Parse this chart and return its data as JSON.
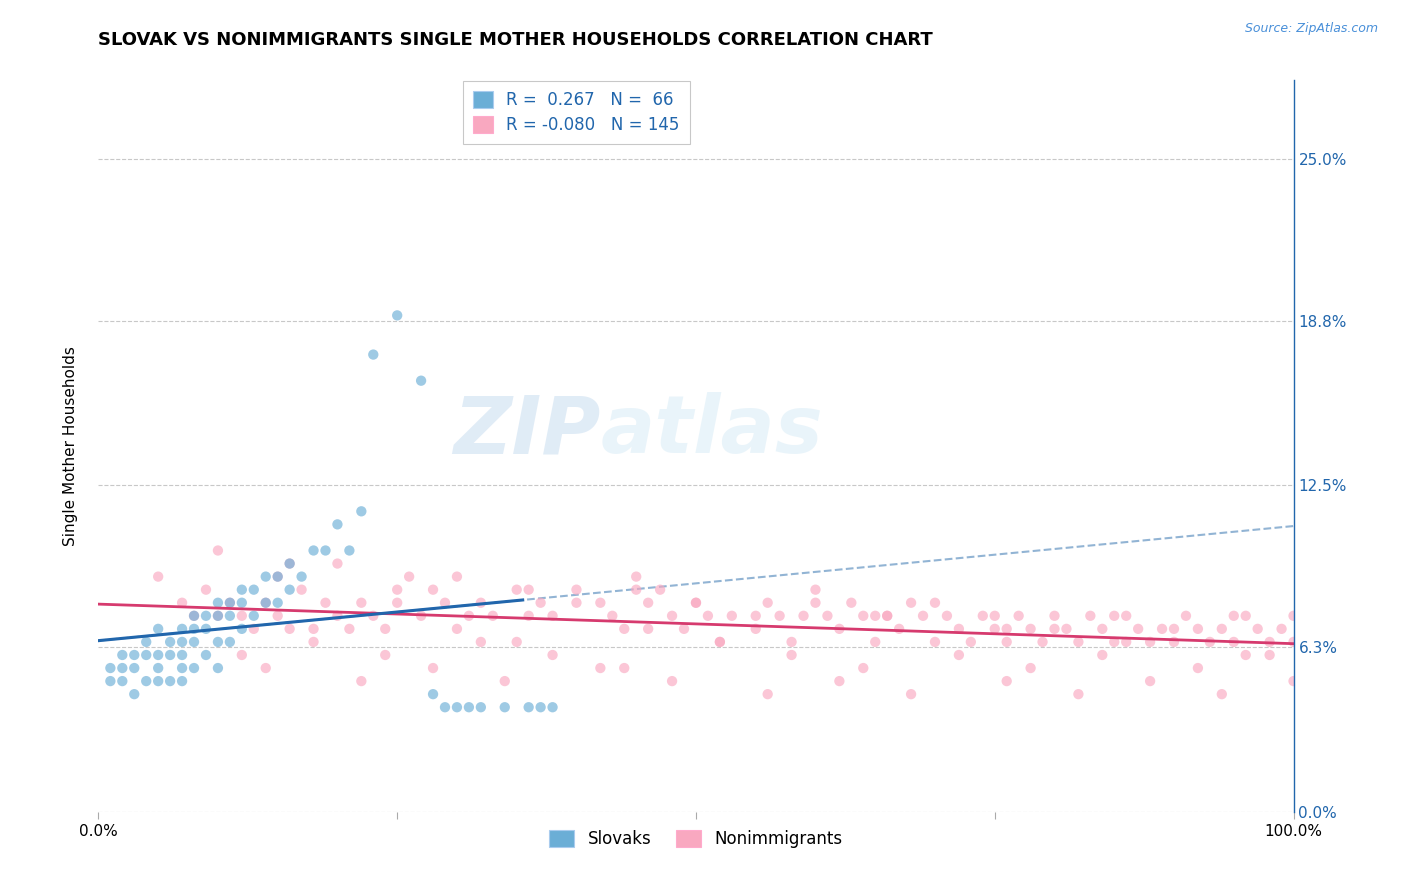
{
  "title": "SLOVAK VS NONIMMIGRANTS SINGLE MOTHER HOUSEHOLDS CORRELATION CHART",
  "source": "Source: ZipAtlas.com",
  "ylabel": "Single Mother Households",
  "xlim": [
    0.0,
    1.0
  ],
  "ylim": [
    0.0,
    0.28
  ],
  "yticks": [
    0.0,
    0.063,
    0.125,
    0.188,
    0.25
  ],
  "ytick_labels_right": [
    "0.0%",
    "6.3%",
    "12.5%",
    "18.8%",
    "25.0%"
  ],
  "xtick_labels": [
    "0.0%",
    "100.0%"
  ],
  "legend_line1": "R =  0.267   N =  66",
  "legend_line2": "R = -0.080   N = 145",
  "blue_scatter_color": "#6baed6",
  "pink_scatter_color": "#f9a8c0",
  "blue_line_color": "#2166ac",
  "pink_line_color": "#d63a6e",
  "dash_line_color": "#92b4d4",
  "grid_color": "#c8c8c8",
  "title_fontsize": 13,
  "label_fontsize": 11,
  "tick_fontsize": 11,
  "watermark_zip": "ZIP",
  "watermark_atlas": "atlas",
  "scatter_size": 55,
  "scatter_alpha": 0.65,
  "slovak_x": [
    0.01,
    0.01,
    0.02,
    0.02,
    0.02,
    0.03,
    0.03,
    0.03,
    0.04,
    0.04,
    0.04,
    0.05,
    0.05,
    0.05,
    0.05,
    0.06,
    0.06,
    0.06,
    0.07,
    0.07,
    0.07,
    0.07,
    0.07,
    0.08,
    0.08,
    0.08,
    0.08,
    0.09,
    0.09,
    0.09,
    0.1,
    0.1,
    0.1,
    0.1,
    0.11,
    0.11,
    0.11,
    0.12,
    0.12,
    0.12,
    0.13,
    0.13,
    0.14,
    0.14,
    0.15,
    0.15,
    0.16,
    0.16,
    0.17,
    0.18,
    0.19,
    0.2,
    0.21,
    0.22,
    0.23,
    0.25,
    0.27,
    0.28,
    0.29,
    0.3,
    0.31,
    0.32,
    0.34,
    0.36,
    0.37,
    0.38
  ],
  "slovak_y": [
    0.055,
    0.05,
    0.05,
    0.055,
    0.06,
    0.045,
    0.055,
    0.06,
    0.05,
    0.06,
    0.065,
    0.05,
    0.055,
    0.06,
    0.07,
    0.05,
    0.06,
    0.065,
    0.05,
    0.055,
    0.06,
    0.065,
    0.07,
    0.055,
    0.065,
    0.07,
    0.075,
    0.06,
    0.07,
    0.075,
    0.055,
    0.065,
    0.075,
    0.08,
    0.065,
    0.075,
    0.08,
    0.07,
    0.08,
    0.085,
    0.075,
    0.085,
    0.08,
    0.09,
    0.08,
    0.09,
    0.085,
    0.095,
    0.09,
    0.1,
    0.1,
    0.11,
    0.1,
    0.115,
    0.175,
    0.19,
    0.165,
    0.045,
    0.04,
    0.04,
    0.04,
    0.04,
    0.04,
    0.04,
    0.04,
    0.04
  ],
  "nonimm_x": [
    0.05,
    0.07,
    0.08,
    0.09,
    0.1,
    0.11,
    0.12,
    0.13,
    0.14,
    0.15,
    0.16,
    0.17,
    0.18,
    0.19,
    0.2,
    0.21,
    0.22,
    0.23,
    0.24,
    0.25,
    0.27,
    0.28,
    0.29,
    0.3,
    0.31,
    0.32,
    0.33,
    0.35,
    0.36,
    0.37,
    0.38,
    0.4,
    0.42,
    0.43,
    0.44,
    0.45,
    0.46,
    0.47,
    0.48,
    0.49,
    0.5,
    0.51,
    0.52,
    0.53,
    0.55,
    0.56,
    0.57,
    0.58,
    0.59,
    0.6,
    0.61,
    0.62,
    0.63,
    0.64,
    0.65,
    0.66,
    0.67,
    0.68,
    0.69,
    0.7,
    0.71,
    0.72,
    0.73,
    0.74,
    0.75,
    0.76,
    0.77,
    0.78,
    0.79,
    0.8,
    0.81,
    0.82,
    0.83,
    0.84,
    0.85,
    0.86,
    0.87,
    0.88,
    0.89,
    0.9,
    0.91,
    0.92,
    0.93,
    0.94,
    0.95,
    0.96,
    0.97,
    0.98,
    0.99,
    1.0,
    0.1,
    0.15,
    0.2,
    0.25,
    0.3,
    0.35,
    0.4,
    0.45,
    0.5,
    0.55,
    0.6,
    0.65,
    0.7,
    0.75,
    0.8,
    0.85,
    0.9,
    0.95,
    1.0,
    0.12,
    0.18,
    0.24,
    0.32,
    0.38,
    0.44,
    0.52,
    0.58,
    0.64,
    0.72,
    0.78,
    0.84,
    0.92,
    0.98,
    0.14,
    0.22,
    0.28,
    0.34,
    0.42,
    0.48,
    0.56,
    0.62,
    0.68,
    0.76,
    0.82,
    0.88,
    0.94,
    1.0,
    0.16,
    0.26,
    0.36,
    0.46,
    0.66,
    0.76,
    0.86,
    0.96
  ],
  "nonimm_y": [
    0.09,
    0.08,
    0.075,
    0.085,
    0.075,
    0.08,
    0.075,
    0.07,
    0.08,
    0.075,
    0.07,
    0.085,
    0.07,
    0.08,
    0.075,
    0.07,
    0.08,
    0.075,
    0.07,
    0.08,
    0.075,
    0.085,
    0.08,
    0.07,
    0.075,
    0.08,
    0.075,
    0.065,
    0.075,
    0.08,
    0.075,
    0.085,
    0.08,
    0.075,
    0.07,
    0.09,
    0.07,
    0.085,
    0.075,
    0.07,
    0.08,
    0.075,
    0.065,
    0.075,
    0.07,
    0.08,
    0.075,
    0.065,
    0.075,
    0.08,
    0.075,
    0.07,
    0.08,
    0.075,
    0.065,
    0.075,
    0.07,
    0.08,
    0.075,
    0.065,
    0.075,
    0.07,
    0.065,
    0.075,
    0.07,
    0.065,
    0.075,
    0.07,
    0.065,
    0.075,
    0.07,
    0.065,
    0.075,
    0.07,
    0.065,
    0.075,
    0.07,
    0.065,
    0.07,
    0.065,
    0.075,
    0.07,
    0.065,
    0.07,
    0.065,
    0.075,
    0.07,
    0.065,
    0.07,
    0.075,
    0.1,
    0.09,
    0.095,
    0.085,
    0.09,
    0.085,
    0.08,
    0.085,
    0.08,
    0.075,
    0.085,
    0.075,
    0.08,
    0.075,
    0.07,
    0.075,
    0.07,
    0.075,
    0.065,
    0.06,
    0.065,
    0.06,
    0.065,
    0.06,
    0.055,
    0.065,
    0.06,
    0.055,
    0.06,
    0.055,
    0.06,
    0.055,
    0.06,
    0.055,
    0.05,
    0.055,
    0.05,
    0.055,
    0.05,
    0.045,
    0.05,
    0.045,
    0.05,
    0.045,
    0.05,
    0.045,
    0.05,
    0.095,
    0.09,
    0.085,
    0.08,
    0.075,
    0.07,
    0.065,
    0.06
  ]
}
